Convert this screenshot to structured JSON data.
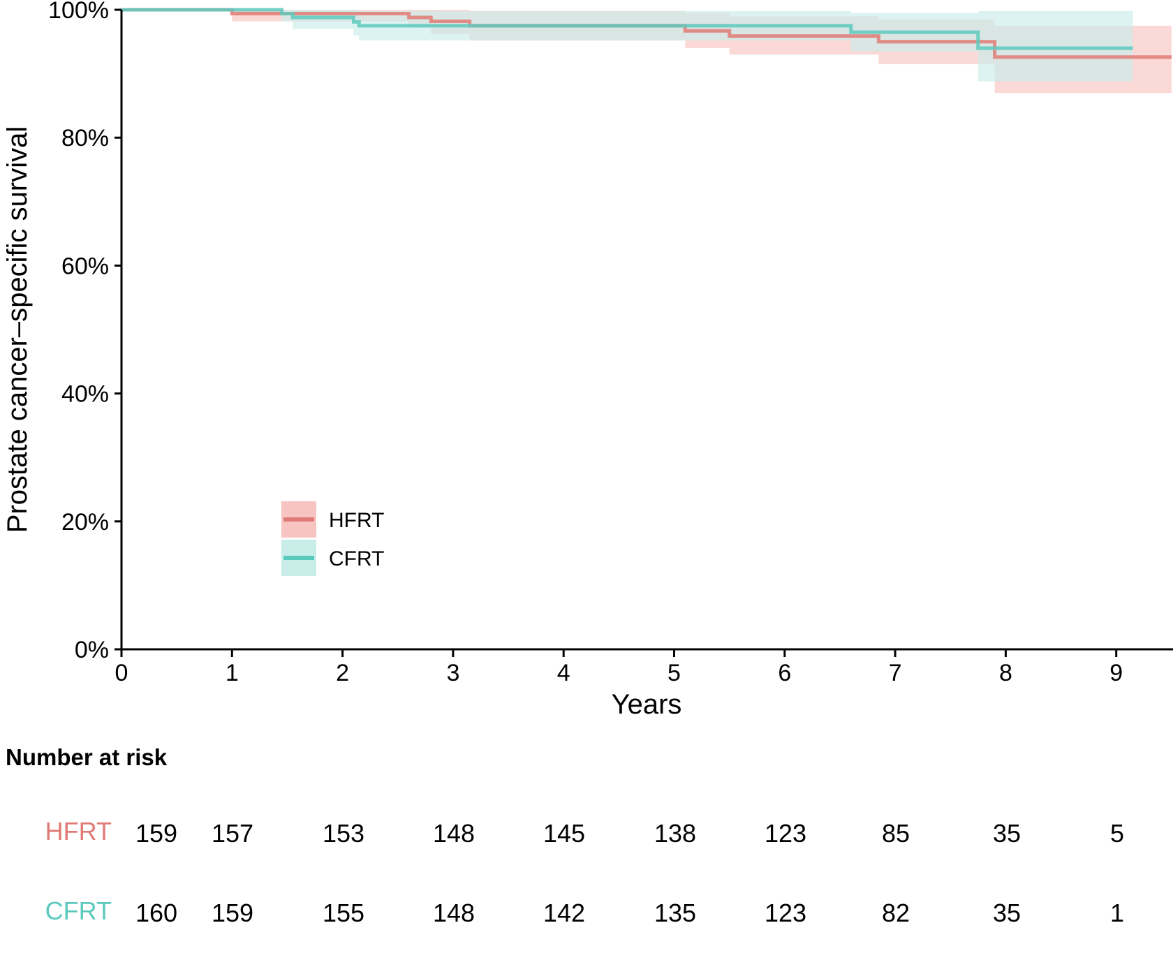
{
  "chart_data": {
    "type": "line",
    "subtype": "kaplan-meier step curve with confidence bands",
    "xlabel": "Years",
    "ylabel": "Prostate cancer–specific survival",
    "xlim": [
      0,
      9.5
    ],
    "ylim": [
      0,
      100
    ],
    "x_ticks": [
      "0",
      "1",
      "2",
      "3",
      "4",
      "5",
      "6",
      "7",
      "8",
      "9"
    ],
    "y_ticks": [
      "0%",
      "20%",
      "40%",
      "60%",
      "80%",
      "100%"
    ],
    "legend_position": "lower-left inside",
    "series": [
      {
        "name": "HFRT",
        "color": "#e07a76",
        "band_color": "#f7c4c2",
        "steps": [
          {
            "x": 0,
            "y": 100,
            "lo": 100,
            "hi": 100
          },
          {
            "x": 1.0,
            "y": 99.4,
            "lo": 98.2,
            "hi": 100
          },
          {
            "x": 1.55,
            "y": 99.4,
            "lo": 98.2,
            "hi": 100
          },
          {
            "x": 2.6,
            "y": 98.8,
            "lo": 97.2,
            "hi": 100
          },
          {
            "x": 2.8,
            "y": 98.2,
            "lo": 96.2,
            "hi": 100
          },
          {
            "x": 3.15,
            "y": 97.5,
            "lo": 95.2,
            "hi": 99.8
          },
          {
            "x": 5.1,
            "y": 96.7,
            "lo": 94.0,
            "hi": 99.5
          },
          {
            "x": 5.5,
            "y": 95.9,
            "lo": 93.0,
            "hi": 99.0
          },
          {
            "x": 6.85,
            "y": 95.0,
            "lo": 91.5,
            "hi": 98.5
          },
          {
            "x": 7.9,
            "y": 92.6,
            "lo": 87.0,
            "hi": 97.5
          },
          {
            "x": 9.5,
            "y": 92.6,
            "lo": 87.0,
            "hi": 97.5
          }
        ]
      },
      {
        "name": "CFRT",
        "color": "#5cc9bd",
        "band_color": "#c9ede9",
        "steps": [
          {
            "x": 0,
            "y": 100,
            "lo": 100,
            "hi": 100
          },
          {
            "x": 1.45,
            "y": 99.4,
            "lo": 98.2,
            "hi": 100
          },
          {
            "x": 1.55,
            "y": 98.8,
            "lo": 97.0,
            "hi": 100
          },
          {
            "x": 2.1,
            "y": 98.1,
            "lo": 96.0,
            "hi": 100
          },
          {
            "x": 2.15,
            "y": 97.5,
            "lo": 95.2,
            "hi": 99.8
          },
          {
            "x": 6.6,
            "y": 96.5,
            "lo": 93.5,
            "hi": 99.5
          },
          {
            "x": 7.75,
            "y": 94.0,
            "lo": 88.8,
            "hi": 99.8
          },
          {
            "x": 9.15,
            "y": 94.0,
            "lo": 88.8,
            "hi": 99.8
          }
        ]
      }
    ],
    "risk_table": {
      "title": "Number at risk",
      "rows": [
        {
          "name": "HFRT",
          "color": "#e07a76",
          "values": [
            "159",
            "157",
            "153",
            "148",
            "145",
            "138",
            "123",
            "85",
            "35",
            "5"
          ]
        },
        {
          "name": "CFRT",
          "color": "#5cc9bd",
          "values": [
            "160",
            "159",
            "155",
            "148",
            "142",
            "135",
            "123",
            "82",
            "35",
            "1"
          ]
        }
      ]
    }
  }
}
